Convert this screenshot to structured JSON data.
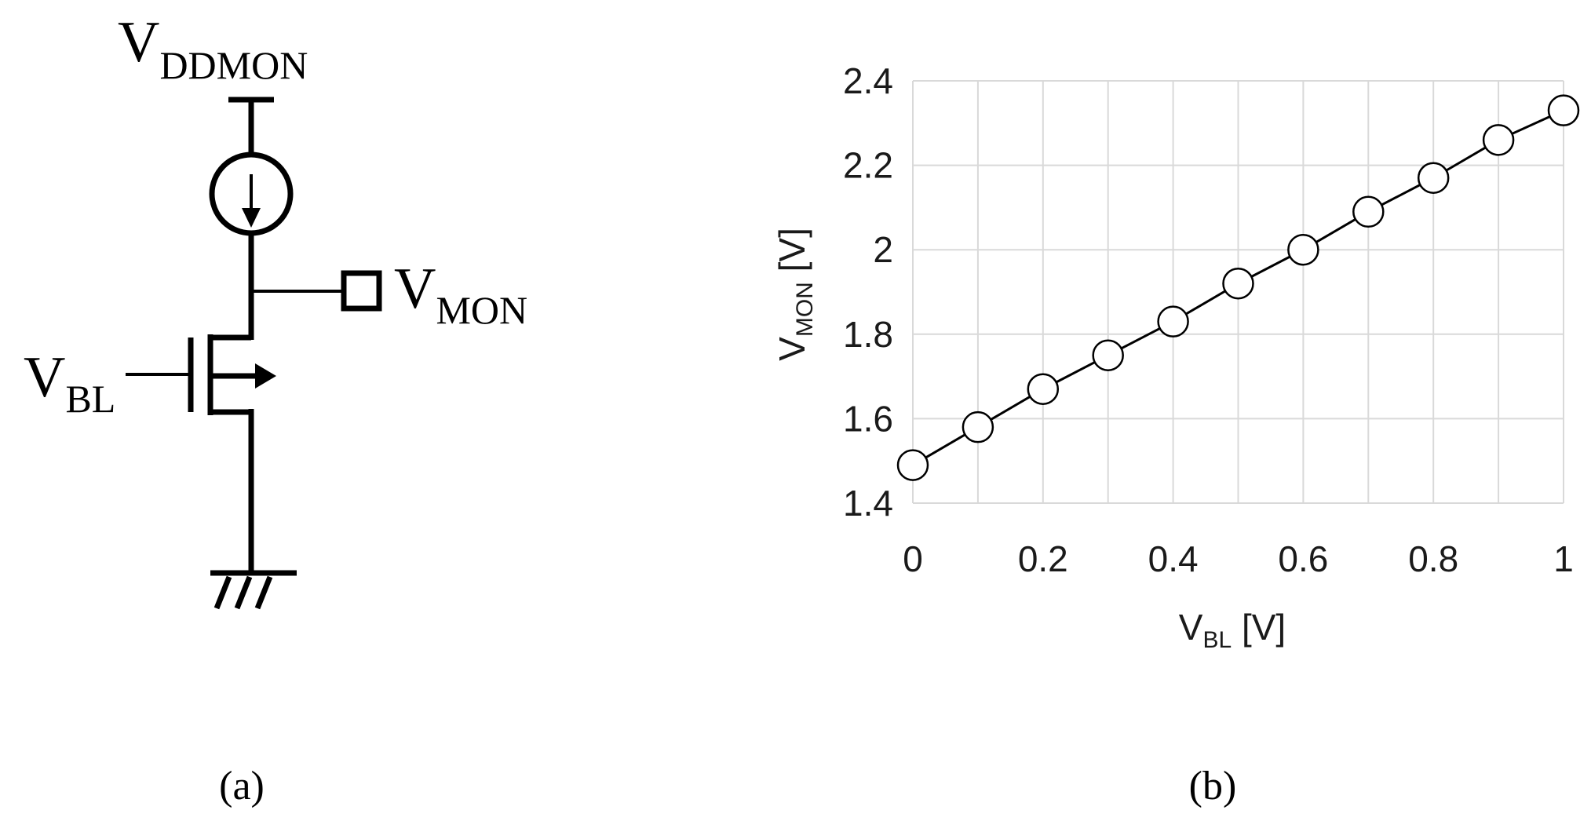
{
  "circuit": {
    "vdd_label_main": "V",
    "vdd_label_sub": "DDMON",
    "vmon_label_main": "V",
    "vmon_label_sub": "MON",
    "vbl_label_main": "V",
    "vbl_label_sub": "BL",
    "caption": "(a)"
  },
  "plot": {
    "caption": "(b)"
  },
  "chart_data": {
    "type": "line",
    "title": "",
    "xlabel_main": "V",
    "xlabel_sub": "BL",
    "xlabel_unit": " [V]",
    "ylabel_main": "V",
    "ylabel_sub": "MON",
    "ylabel_unit": " [V]",
    "xlim": [
      0,
      1
    ],
    "ylim": [
      1.4,
      2.4
    ],
    "xticks": [
      0,
      0.2,
      0.4,
      0.6,
      0.8,
      1
    ],
    "xtick_labels": [
      "0",
      "0.2",
      "0.4",
      "0.6",
      "0.8",
      "1"
    ],
    "yticks": [
      1.4,
      1.6,
      1.8,
      2.0,
      2.2,
      2.4
    ],
    "ytick_labels": [
      "1.4",
      "1.6",
      "1.8",
      "2",
      "2.2",
      "2.4"
    ],
    "xgrid": [
      0,
      0.1,
      0.2,
      0.3,
      0.4,
      0.5,
      0.6,
      0.7,
      0.8,
      0.9,
      1
    ],
    "grid": true,
    "marker": "open-circle",
    "line_color": "#000000",
    "grid_color": "#d9d9d9",
    "series": [
      {
        "x": [
          0,
          0.1,
          0.2,
          0.3,
          0.4,
          0.5,
          0.6,
          0.7,
          0.8,
          0.9,
          1
        ],
        "y": [
          1.49,
          1.58,
          1.67,
          1.75,
          1.83,
          1.92,
          2.0,
          2.09,
          2.17,
          2.26,
          2.33
        ]
      }
    ]
  }
}
